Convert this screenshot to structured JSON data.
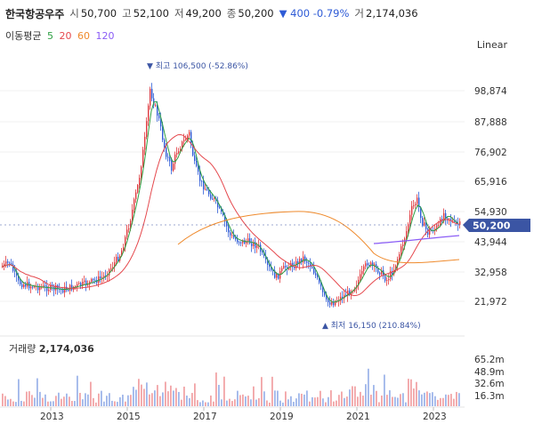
{
  "header": {
    "stock_name": "한국항공우주",
    "open_label": "시",
    "open": "50,700",
    "high_label": "고",
    "high": "52,100",
    "low_label": "저",
    "low": "49,200",
    "close_label": "종",
    "close": "50,200",
    "change": "▼ 400 -0.79%",
    "volume_label": "거",
    "volume": "2,174,036"
  },
  "ma": {
    "label": "이동평균",
    "periods": [
      "5",
      "20",
      "60",
      "120"
    ],
    "colors": [
      "#2ea043",
      "#e5484d",
      "#ef8a2c",
      "#8a5cf6"
    ]
  },
  "scale_label": "Linear",
  "price_axis": [
    "98,874",
    "87,888",
    "76,902",
    "65,916",
    "54,930",
    "43,944",
    "32,958",
    "21,972"
  ],
  "current_price_tag": "50,200",
  "annotations": {
    "high": "▼ 최고 106,500 (-52.86%)",
    "low": "▲ 최저 16,150 (210.84%)"
  },
  "volume": {
    "title_label": "거래량",
    "title_value": "2,174,036",
    "axis": [
      "65.2m",
      "48.9m",
      "32.6m",
      "16.3m"
    ]
  },
  "x_axis": [
    "2013",
    "2015",
    "2017",
    "2019",
    "2021",
    "2023"
  ],
  "colors": {
    "up": "#e0393e",
    "down": "#2e5bd6",
    "tag": "#3b55a4",
    "grid": "#eeeeee"
  }
}
